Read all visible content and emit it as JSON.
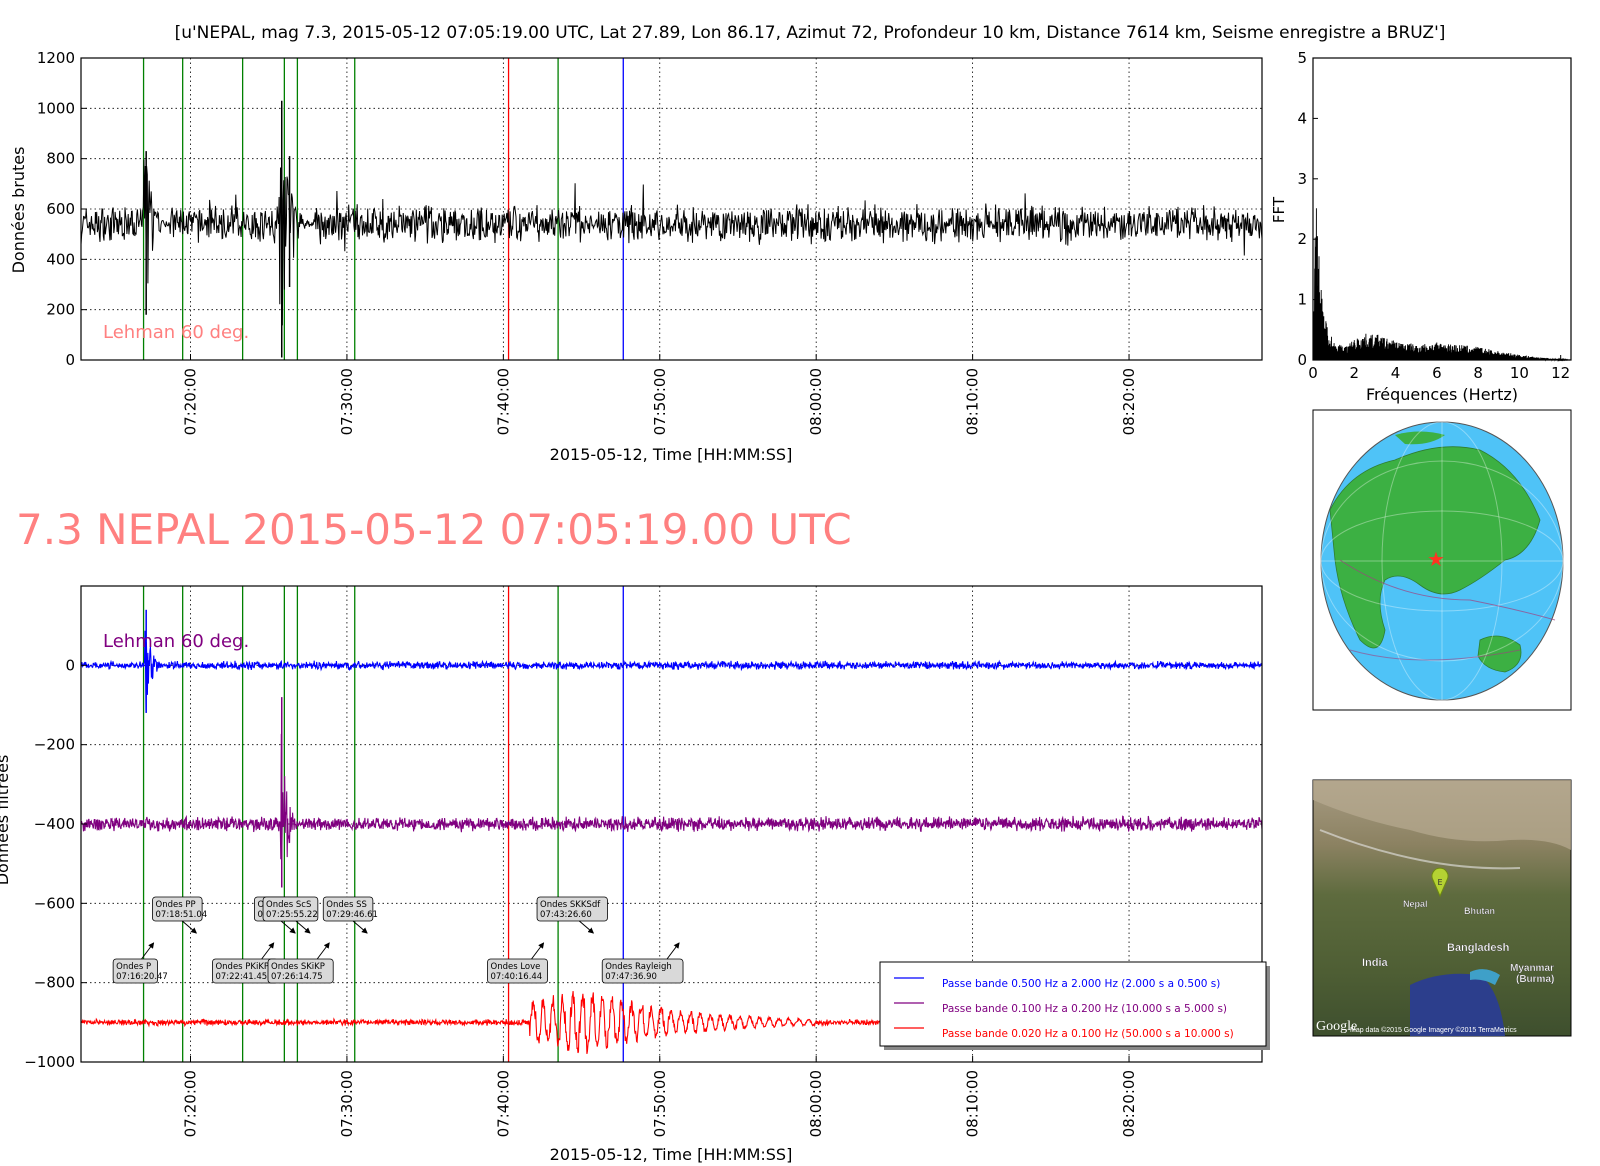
{
  "figure": {
    "suptitle": "[u'NEPAL, mag 7.3, 2015-05-12 07:05:19.00 UTC, Lat 27.89, Lon 86.17, Azimut  72, Profondeur 10 km, Distance  7614 km, Seisme enregistre a BRUZ']",
    "big_title": "7.3 NEPAL 2015-05-12 07:05:19.00 UTC",
    "big_title_color": "#ff8080"
  },
  "colors": {
    "raw": "#000000",
    "phase_green": "#008000",
    "phase_red": "#ff0000",
    "phase_blue": "#0000ff",
    "band_blue": "#0000ff",
    "band_purple": "#800080",
    "band_red": "#ff0000",
    "lehman_top": "#ff8080",
    "lehman_bottom": "#800080"
  },
  "chart_data": [
    {
      "id": "raw",
      "type": "line",
      "ylabel": "Données brutes",
      "xlabel": "2015-05-12, Time [HH:MM:SS]",
      "xlim": [
        "07:13:00",
        "08:28:30"
      ],
      "ylim": [
        0,
        1200
      ],
      "yticks": [
        0,
        200,
        400,
        600,
        800,
        1000,
        1200
      ],
      "xticks": [
        "07:20:00",
        "07:30:00",
        "07:40:00",
        "07:50:00",
        "08:00:00",
        "08:10:00",
        "08:20:00"
      ],
      "grid": true,
      "annotation": "Lehman 60 deg.",
      "series": [
        {
          "baseline": 540,
          "noise_amplitude": 60,
          "bursts": [
            {
              "time": "07:17:10",
              "max": 830,
              "min": 180
            },
            {
              "time": "07:25:50",
              "max": 1030,
              "min": 10
            },
            {
              "time": "07:26:20",
              "max": 810,
              "min": 290
            }
          ]
        }
      ],
      "phase_lines": [
        {
          "time": "07:17:00",
          "color": "green"
        },
        {
          "time": "07:19:30",
          "color": "green"
        },
        {
          "time": "07:23:20",
          "color": "green"
        },
        {
          "time": "07:26:00",
          "color": "green"
        },
        {
          "time": "07:26:50",
          "color": "green"
        },
        {
          "time": "07:30:30",
          "color": "green"
        },
        {
          "time": "07:40:20",
          "color": "red"
        },
        {
          "time": "07:43:30",
          "color": "green"
        },
        {
          "time": "07:47:40",
          "color": "blue"
        }
      ]
    },
    {
      "id": "fft",
      "type": "area",
      "xlabel": "Fréquences (Hertz)",
      "ylabel": "FFT",
      "xlim": [
        0,
        12.5
      ],
      "ylim": [
        0,
        5
      ],
      "xticks": [
        0,
        2,
        4,
        6,
        8,
        10,
        12
      ],
      "yticks": [
        0,
        1,
        2,
        3,
        4,
        5
      ],
      "peak_freq": 0.2,
      "peak_value": 2.05,
      "x": [
        0,
        0.1,
        0.15,
        0.2,
        0.3,
        0.4,
        0.5,
        0.7,
        1.0,
        1.5,
        2.0,
        2.5,
        3.0,
        4.0,
        5.0,
        6.0,
        7.0,
        8.0,
        9.0,
        10.0,
        11.0,
        12.0,
        12.5
      ],
      "values": [
        0,
        1.4,
        1.8,
        2.05,
        1.2,
        0.8,
        0.6,
        0.4,
        0.22,
        0.15,
        0.24,
        0.3,
        0.3,
        0.22,
        0.18,
        0.2,
        0.18,
        0.15,
        0.1,
        0.06,
        0.03,
        0.01,
        0
      ]
    },
    {
      "id": "filtered",
      "type": "line",
      "ylabel": "Données filtrées",
      "xlabel": "2015-05-12, Time [HH:MM:SS]",
      "xlim": [
        "07:13:00",
        "08:28:30"
      ],
      "ylim": [
        -1000,
        200
      ],
      "yticks": [
        -1000,
        -800,
        -600,
        -400,
        -200,
        0
      ],
      "xticks": [
        "07:20:00",
        "07:30:00",
        "07:40:00",
        "07:50:00",
        "08:00:00",
        "08:10:00",
        "08:20:00"
      ],
      "grid": true,
      "annotation": "Lehman 60 deg.",
      "series": [
        {
          "name": "Passe bande 0.500 Hz a 2.000 Hz (2.000 s a 0.500 s)",
          "color": "blue",
          "offset": 0,
          "noise_amplitude": 8,
          "burst_time": "07:17:10",
          "burst_max": 140,
          "burst_min": -120
        },
        {
          "name": "Passe bande 0.100 Hz a 0.200 Hz (10.000 s a 5.000 s)",
          "color": "purple",
          "offset": -400,
          "noise_amplitude": 14,
          "burst_time": "07:25:50",
          "burst_max": -80,
          "burst_min": -560
        },
        {
          "name": "Passe bande 0.020 Hz a 0.100 Hz (50.000 s a 10.000 s)",
          "color": "red",
          "offset": -900,
          "noise_amplitude": 6,
          "burst_time": "07:45:00",
          "burst_max": -810,
          "burst_min": -995
        }
      ],
      "phase_labels": [
        {
          "name": "Ondes P",
          "time": "07:16:20.47",
          "row": "low"
        },
        {
          "name": "Ondes PP",
          "time": "07:18:51.04",
          "row": "high"
        },
        {
          "name": "Ondes PKiKP",
          "time": "07:22:41.45",
          "row": "low"
        },
        {
          "name": "Ondes S",
          "time": "07:25:22.31",
          "row": "high"
        },
        {
          "name": "Ondes SKiKP",
          "time": "07:26:14.75",
          "row": "low"
        },
        {
          "name": "Ondes ScS",
          "time": "07:25:55.22",
          "row": "high"
        },
        {
          "name": "Ondes SS",
          "time": "07:29:46.61",
          "row": "high"
        },
        {
          "name": "Ondes Love",
          "time": "07:40:16.44",
          "row": "low"
        },
        {
          "name": "Ondes SKKSdf",
          "time": "07:43:26.60",
          "row": "high"
        },
        {
          "name": "Ondes Rayleigh",
          "time": "07:47:36.90",
          "row": "low"
        }
      ]
    }
  ],
  "globe": {
    "marker": "red-star"
  },
  "satellite_map": {
    "labels": [
      "Nepal",
      "Bhutan",
      "Bangladesh",
      "India",
      "Myanmar",
      "(Burma)"
    ],
    "logo": "Google",
    "attribution": "Map data ©2015 Google  Imagery ©2015 TerraMetrics",
    "pin_label": "E"
  }
}
